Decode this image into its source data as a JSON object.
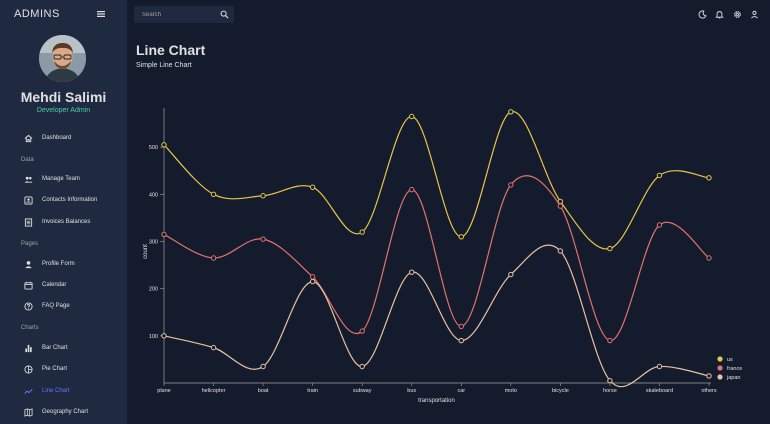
{
  "sidebar": {
    "brand": "ADMINS",
    "user": {
      "name": "Mehdi Salimi",
      "role": "Developer Admin"
    },
    "items": [
      {
        "label": "Dashboard",
        "icon": "home-icon",
        "active": false
      },
      {
        "label": "Manage Team",
        "icon": "people-icon",
        "active": false
      },
      {
        "label": "Contacts Information",
        "icon": "contacts-icon",
        "active": false
      },
      {
        "label": "Invoices Balances",
        "icon": "receipt-icon",
        "active": false
      },
      {
        "label": "Profile Form",
        "icon": "person-icon",
        "active": false
      },
      {
        "label": "Calendar",
        "icon": "calendar-icon",
        "active": false
      },
      {
        "label": "FAQ Page",
        "icon": "help-icon",
        "active": false
      },
      {
        "label": "Bar Chart",
        "icon": "bar-chart-icon",
        "active": false
      },
      {
        "label": "Pie Chart",
        "icon": "pie-chart-icon",
        "active": false
      },
      {
        "label": "Line Chart",
        "icon": "timeline-icon",
        "active": true
      },
      {
        "label": "Geography Chart",
        "icon": "map-icon",
        "active": false
      }
    ],
    "sections": [
      "Data",
      "Pages",
      "Charts"
    ]
  },
  "topbar": {
    "search_placeholder": "Search",
    "icons": [
      "dark-mode-icon",
      "notifications-icon",
      "settings-icon",
      "person-icon"
    ]
  },
  "header": {
    "title": "Line Chart",
    "subtitle": "Simple Line Chart"
  },
  "colors": {
    "background": "#141b2d",
    "sidebar": "#1f2a40",
    "accent": "#4cceac",
    "active": "#6870fa",
    "us": "#e8c547",
    "france": "#e2726e",
    "japan": "#e8c1a0"
  },
  "chart_data": {
    "type": "line",
    "categories": [
      "plane",
      "helicopter",
      "boat",
      "train",
      "subway",
      "bus",
      "car",
      "moto",
      "bicycle",
      "horse",
      "skateboard",
      "others"
    ],
    "series": [
      {
        "name": "us",
        "color": "#e8c547",
        "values": [
          505,
          400,
          397,
          415,
          320,
          565,
          310,
          575,
          385,
          285,
          440,
          435
        ]
      },
      {
        "name": "france",
        "color": "#e2726e",
        "values": [
          315,
          265,
          305,
          225,
          110,
          410,
          120,
          420,
          375,
          90,
          335,
          265
        ]
      },
      {
        "name": "japan",
        "color": "#e8c1a0",
        "values": [
          100,
          75,
          35,
          215,
          35,
          235,
          90,
          230,
          280,
          5,
          35,
          15
        ]
      }
    ],
    "xlabel": "transportation",
    "ylabel": "count",
    "yticks": [
      100,
      200,
      300,
      400,
      500
    ],
    "ylim": [
      0,
      600
    ],
    "legend": "bottom-right"
  }
}
